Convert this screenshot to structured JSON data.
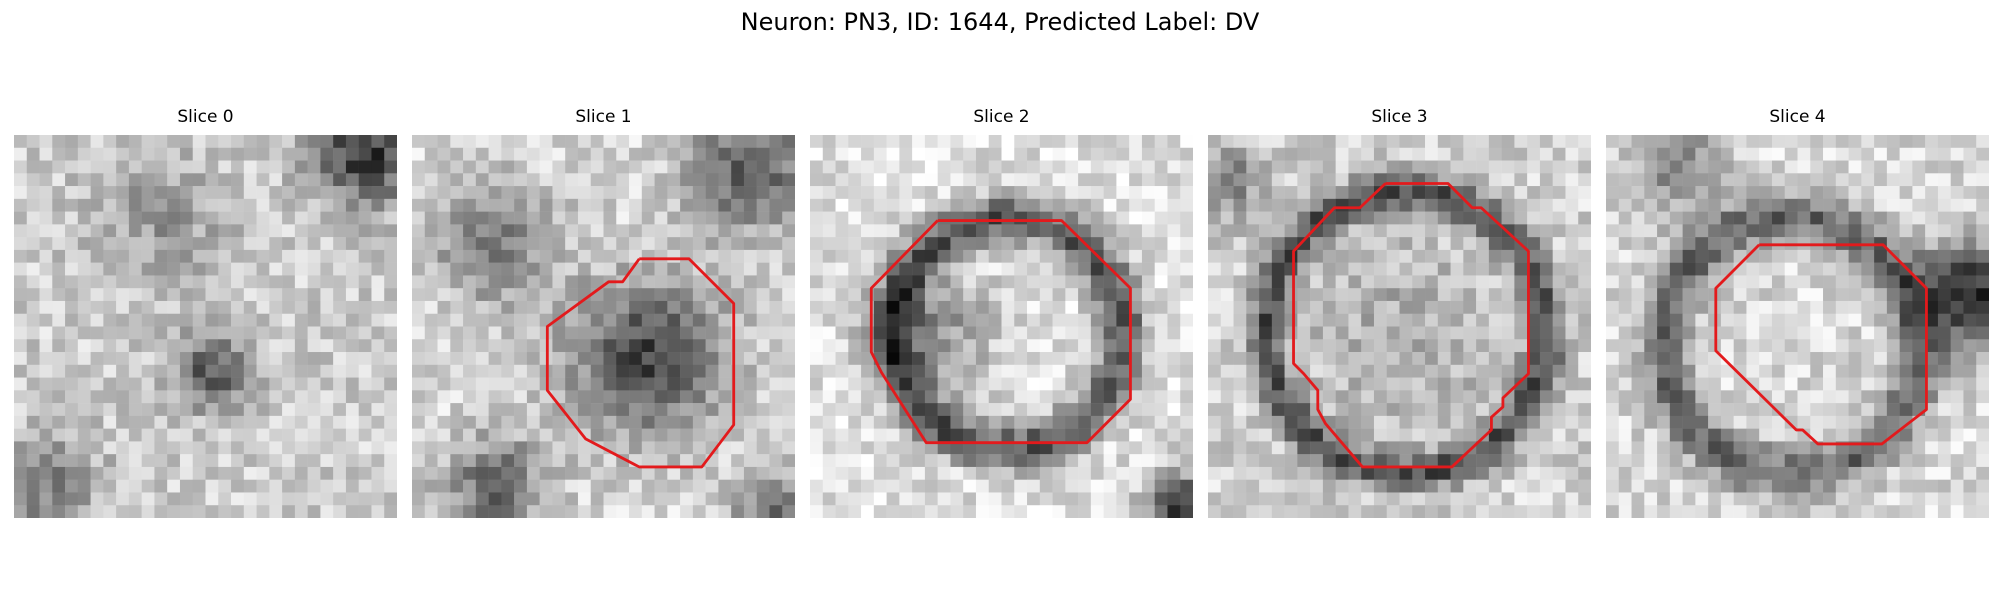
{
  "figure": {
    "title": "Neuron: PN3, ID: 1644, Predicted Label: DV"
  },
  "panels": [
    {
      "title": "Slice 0",
      "has_outline": false
    },
    {
      "title": "Slice 1",
      "has_outline": true
    },
    {
      "title": "Slice 2",
      "has_outline": true
    },
    {
      "title": "Slice 3",
      "has_outline": true
    },
    {
      "title": "Slice 4",
      "has_outline": true
    }
  ],
  "colors": {
    "outline": "#e31a1c",
    "background": "#ffffff"
  }
}
